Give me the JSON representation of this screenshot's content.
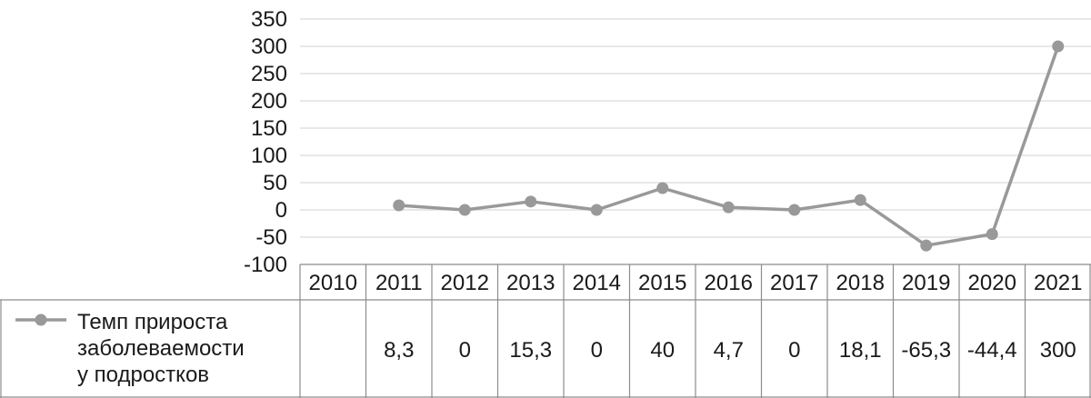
{
  "chart_data": {
    "type": "line",
    "categories": [
      "2010",
      "2011",
      "2012",
      "2013",
      "2014",
      "2015",
      "2016",
      "2017",
      "2018",
      "2019",
      "2020",
      "2021"
    ],
    "series": [
      {
        "name": "Темп прироста заболеваемости у подростков",
        "name_lines": [
          "Темп прироста",
          "заболеваемости",
          "у подростков"
        ],
        "values": [
          null,
          8.3,
          0,
          15.3,
          0,
          40,
          4.7,
          0,
          18.1,
          -65.3,
          -44.4,
          300
        ],
        "labels": [
          "",
          "8,3",
          "0",
          "15,3",
          "0",
          "40",
          "4,7",
          "0",
          "18,1",
          "-65,3",
          "-44,4",
          "300"
        ],
        "color": "#999999"
      }
    ],
    "yticks": [
      350,
      300,
      250,
      200,
      150,
      100,
      50,
      0,
      -50,
      -100
    ],
    "ylim": [
      -100,
      350
    ],
    "grid": true,
    "data_table": true,
    "legend": "in-data-table"
  }
}
